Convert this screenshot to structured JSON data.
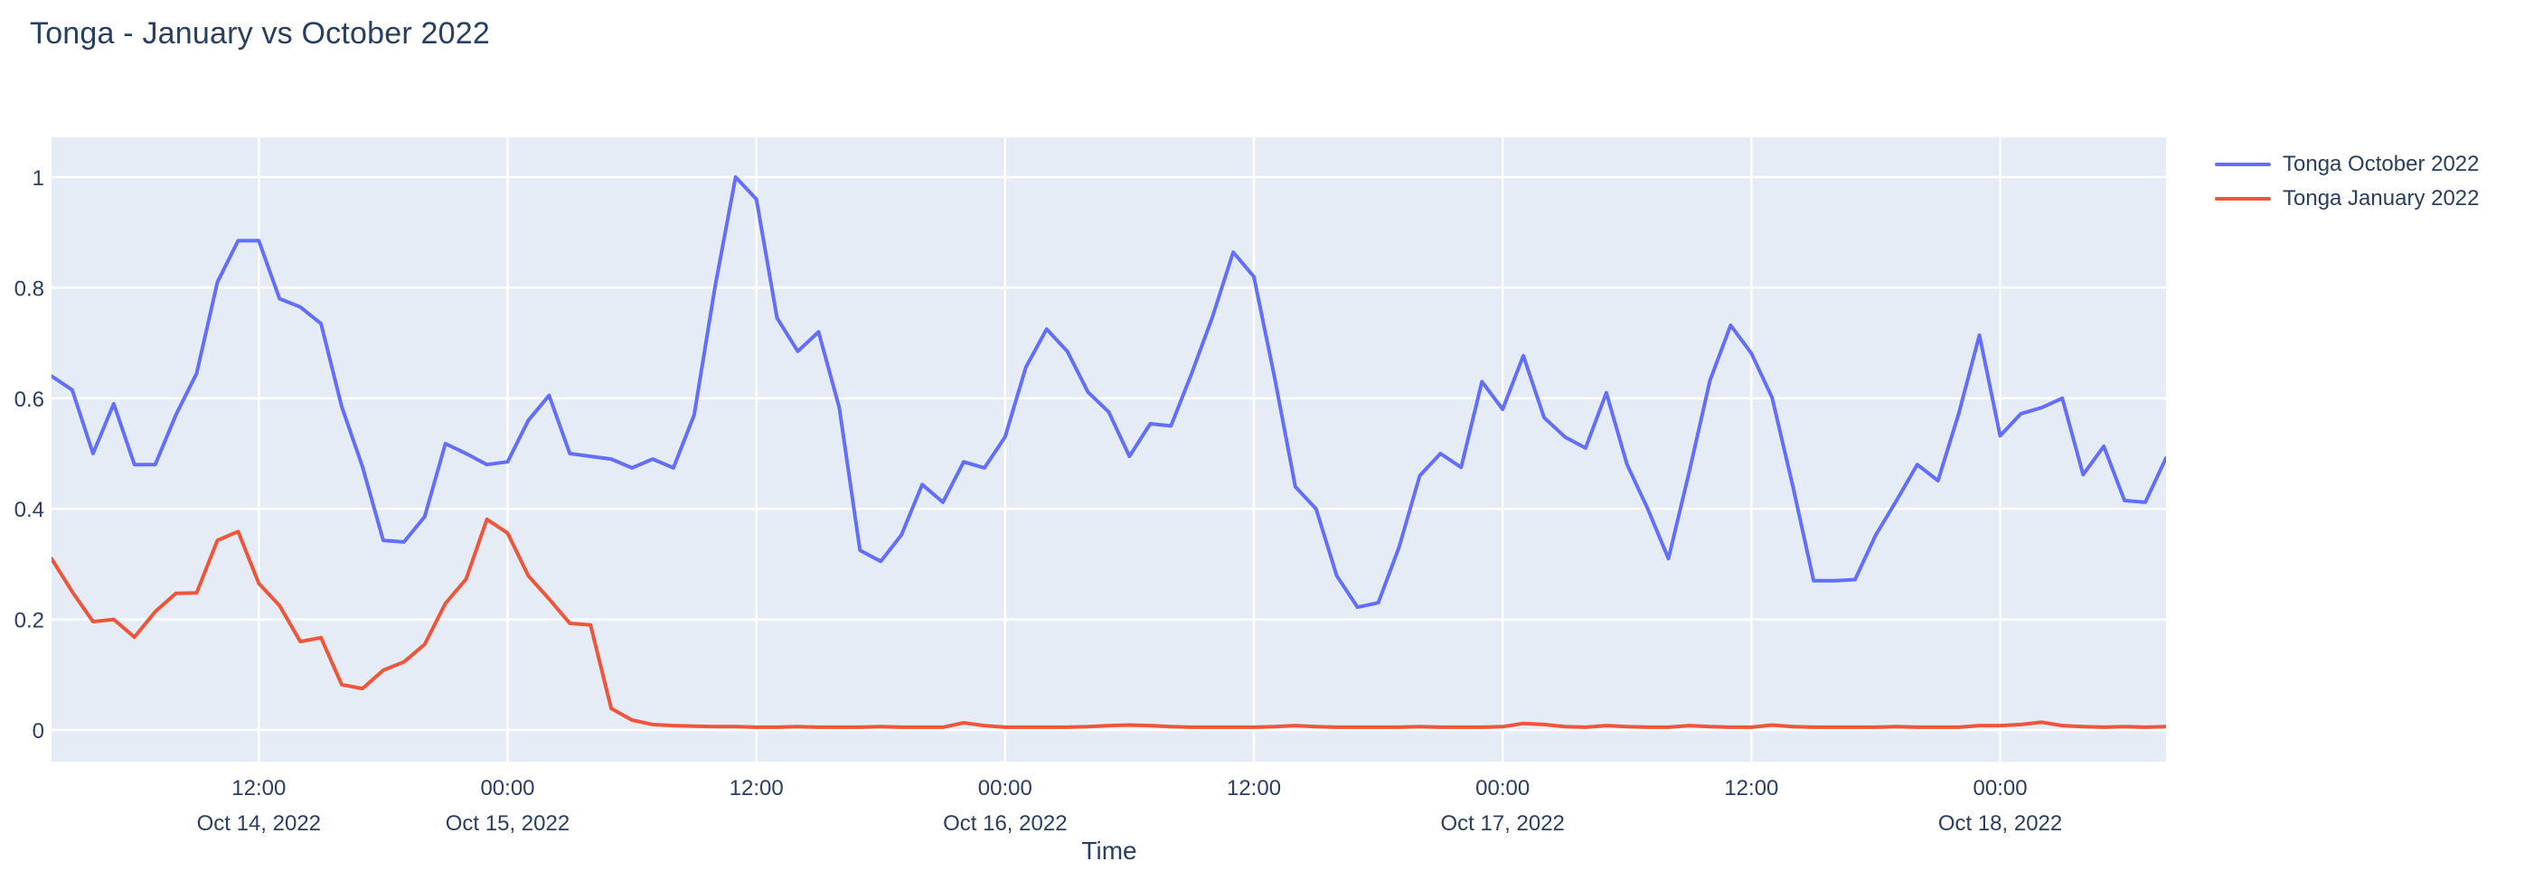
{
  "chart_data": {
    "type": "line",
    "title": "Tonga - January vs October 2022",
    "xlabel": "Time",
    "ylabel": "",
    "x_start": "2022-10-14 02:00",
    "x_end": "2022-10-18 08:00",
    "x_interval_hours": 1,
    "ylim": [
      0,
      1
    ],
    "grid": true,
    "legend_position": "top-right",
    "series": [
      {
        "name": "Tonga October 2022",
        "color": "#636EFA",
        "values": [
          0.64,
          0.615,
          0.5,
          0.59,
          0.48,
          0.48,
          0.57,
          0.645,
          0.81,
          0.885,
          0.885,
          0.78,
          0.765,
          0.735,
          0.585,
          0.476,
          0.343,
          0.34,
          0.386,
          0.518,
          0.5,
          0.48,
          0.485,
          0.56,
          0.605,
          0.5,
          0.495,
          0.49,
          0.474,
          0.49,
          0.474,
          0.57,
          0.8,
          1.0,
          0.96,
          0.745,
          0.685,
          0.72,
          0.583,
          0.325,
          0.305,
          0.353,
          0.444,
          0.412,
          0.485,
          0.474,
          0.53,
          0.656,
          0.725,
          0.685,
          0.611,
          0.575,
          0.495,
          0.554,
          0.55,
          0.645,
          0.747,
          0.864,
          0.82,
          0.637,
          0.44,
          0.4,
          0.279,
          0.222,
          0.23,
          0.33,
          0.46,
          0.5,
          0.475,
          0.63,
          0.58,
          0.677,
          0.565,
          0.53,
          0.51,
          0.61,
          0.48,
          0.4,
          0.31,
          0.467,
          0.632,
          0.732,
          0.681,
          0.601,
          0.441,
          0.27,
          0.27,
          0.272,
          0.353,
          0.415,
          0.48,
          0.451,
          0.572,
          0.714,
          0.532,
          0.572,
          0.583,
          0.6,
          0.462,
          0.513,
          0.415,
          0.412,
          0.492
        ]
      },
      {
        "name": "Tonga January 2022",
        "color": "#EF553B",
        "values": [
          0.31,
          0.25,
          0.196,
          0.2,
          0.168,
          0.214,
          0.247,
          0.248,
          0.343,
          0.359,
          0.265,
          0.225,
          0.16,
          0.167,
          0.082,
          0.075,
          0.108,
          0.123,
          0.155,
          0.229,
          0.273,
          0.381,
          0.356,
          0.279,
          0.237,
          0.193,
          0.19,
          0.039,
          0.018,
          0.01,
          0.008,
          0.007,
          0.006,
          0.006,
          0.005,
          0.005,
          0.006,
          0.005,
          0.005,
          0.005,
          0.006,
          0.005,
          0.005,
          0.005,
          0.013,
          0.008,
          0.005,
          0.005,
          0.005,
          0.005,
          0.006,
          0.008,
          0.009,
          0.008,
          0.006,
          0.005,
          0.005,
          0.005,
          0.005,
          0.006,
          0.008,
          0.006,
          0.005,
          0.005,
          0.005,
          0.005,
          0.006,
          0.005,
          0.005,
          0.005,
          0.006,
          0.012,
          0.01,
          0.006,
          0.005,
          0.008,
          0.006,
          0.005,
          0.005,
          0.008,
          0.006,
          0.005,
          0.005,
          0.009,
          0.006,
          0.005,
          0.005,
          0.005,
          0.005,
          0.006,
          0.005,
          0.005,
          0.005,
          0.008,
          0.008,
          0.01,
          0.014,
          0.008,
          0.006,
          0.005,
          0.006,
          0.005,
          0.006
        ]
      }
    ]
  },
  "axes": {
    "x": {
      "title": "Time",
      "ticks": [
        {
          "hour": 10,
          "time": "12:00",
          "date": "Oct 14, 2022"
        },
        {
          "hour": 22,
          "time": "00:00",
          "date": "Oct 15, 2022"
        },
        {
          "hour": 34,
          "time": "12:00",
          "date": ""
        },
        {
          "hour": 46,
          "time": "00:00",
          "date": "Oct 16, 2022"
        },
        {
          "hour": 58,
          "time": "12:00",
          "date": ""
        },
        {
          "hour": 70,
          "time": "00:00",
          "date": "Oct 17, 2022"
        },
        {
          "hour": 82,
          "time": "12:00",
          "date": ""
        },
        {
          "hour": 94,
          "time": "00:00",
          "date": "Oct 18, 2022"
        }
      ]
    },
    "y": {
      "ticks": [
        {
          "label": "0",
          "value": 0
        },
        {
          "label": "0.2",
          "value": 0.2
        },
        {
          "label": "0.4",
          "value": 0.4
        },
        {
          "label": "0.6",
          "value": 0.6
        },
        {
          "label": "0.8",
          "value": 0.8
        },
        {
          "label": "1",
          "value": 1
        }
      ]
    }
  },
  "legend": {
    "items": [
      {
        "label": "Tonga October 2022",
        "color": "#636EFA"
      },
      {
        "label": "Tonga January 2022",
        "color": "#EF553B"
      }
    ]
  },
  "colors": {
    "plot_bg": "#E5ECF6",
    "grid": "#FFFFFF",
    "text": "#2A3F5F",
    "october": "#636EFA",
    "january": "#EF553B"
  }
}
